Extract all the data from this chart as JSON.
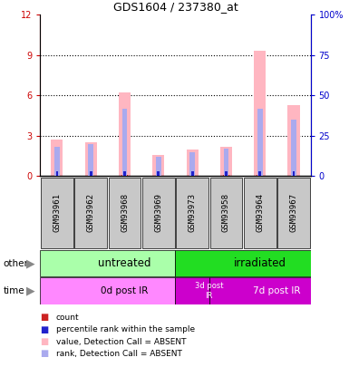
{
  "title": "GDS1604 / 237380_at",
  "samples": [
    "GSM93961",
    "GSM93962",
    "GSM93968",
    "GSM93969",
    "GSM93973",
    "GSM93958",
    "GSM93964",
    "GSM93967"
  ],
  "pink_bar_heights": [
    2.7,
    2.5,
    6.2,
    1.6,
    2.0,
    2.2,
    9.3,
    5.3
  ],
  "blue_bar_top_pct": [
    18,
    20,
    42,
    12,
    15,
    17,
    42,
    35
  ],
  "count_tiny": [
    0.12,
    0.12,
    0.12,
    0.12,
    0.12,
    0.12,
    0.12,
    0.12
  ],
  "rank_tiny_pct": [
    3,
    3,
    3,
    3,
    3,
    3,
    3,
    3
  ],
  "ylim": [
    0,
    12
  ],
  "y2lim": [
    0,
    100
  ],
  "yticks": [
    0,
    3,
    6,
    9,
    12
  ],
  "y2ticks": [
    0,
    25,
    50,
    75,
    100
  ],
  "y2tick_labels": [
    "0",
    "25",
    "50",
    "75",
    "100%"
  ],
  "groups_other": [
    {
      "label": "untreated",
      "start": 0,
      "end": 4,
      "color": "#AAFFAA"
    },
    {
      "label": "irradiated",
      "start": 4,
      "end": 8,
      "color": "#22DD22"
    }
  ],
  "groups_time": [
    {
      "label": "0d post IR",
      "start": 0,
      "end": 4,
      "color": "#FF88FF"
    },
    {
      "label": "3d post\nIR",
      "start": 4,
      "end": 5,
      "color": "#CC00CC"
    },
    {
      "label": "7d post IR",
      "start": 5,
      "end": 8,
      "color": "#CC00CC"
    }
  ],
  "color_pink": "#FFB6C1",
  "color_dark_red": "#CC2222",
  "color_blue": "#AAAAEE",
  "color_dark_blue": "#2222CC",
  "color_label_left": "#CC0000",
  "color_label_right": "#0000CC",
  "legend_labels": [
    "count",
    "percentile rank within the sample",
    "value, Detection Call = ABSENT",
    "rank, Detection Call = ABSENT"
  ],
  "legend_colors": [
    "#CC2222",
    "#2222CC",
    "#FFB6C1",
    "#AAAAEE"
  ]
}
